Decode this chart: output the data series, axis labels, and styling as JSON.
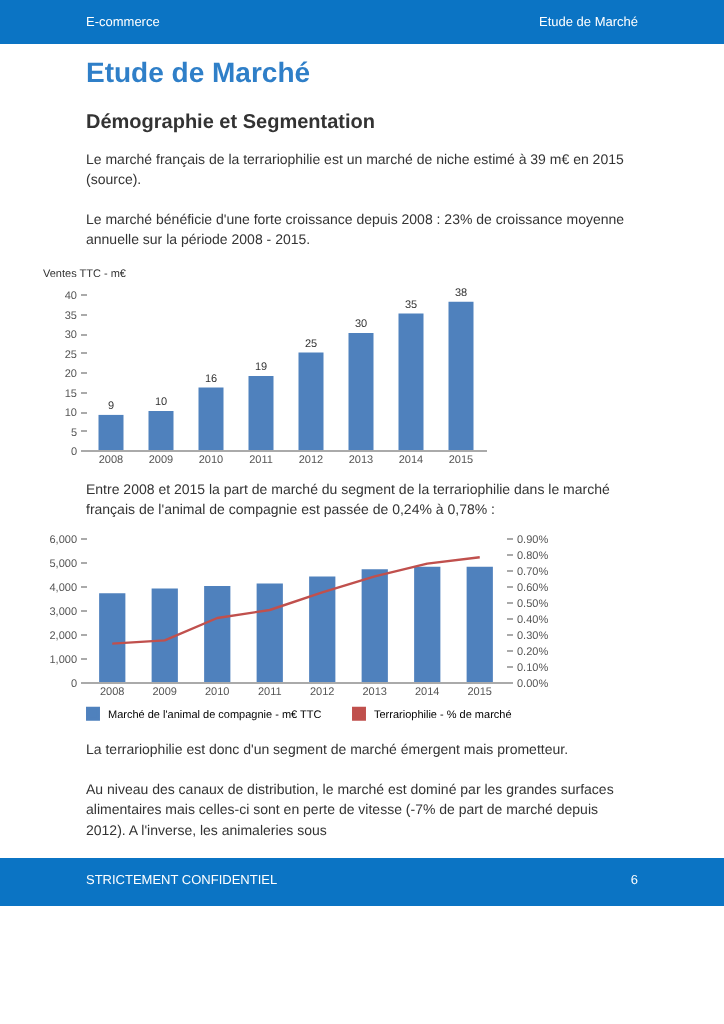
{
  "chart_data": [
    {
      "type": "bar",
      "title": "Etude de Marché",
      "subtitle": "Démographie et Segmentation",
      "annotations": [
        "E-commerce",
        "Etude de Marché",
        "Le marché français de la terrariophilie est un marché de niche estimé à 39 m€ en 2015 (source).",
        "Le marché bénéficie d'une forte croissance depuis 2008 : 23% de croissance moyenne annuelle sur la période 2008 - 2015."
      ],
      "ylabel": "Ventes TTC - m€",
      "categories": [
        "2008",
        "2009",
        "2010",
        "2011",
        "2012",
        "2013",
        "2014",
        "2015"
      ],
      "values": [
        9,
        10,
        16,
        19,
        25,
        30,
        35,
        38
      ],
      "color": "#4f81bd",
      "data_labels": true,
      "ylim": [
        0,
        40
      ],
      "yticks": [
        0,
        5,
        10,
        15,
        20,
        25,
        30,
        35,
        40
      ],
      "grid": false,
      "legend": false
    },
    {
      "type": "bar",
      "title": "Entre 2008 et 2015 la part de marché du segment de la terrariophilie dans le marché français de l'animal de compagnie est passée de 0,24% à 0,78% :",
      "annotations": [
        "La terrariophilie est donc d'un segment de marché émergent mais prometteur.",
        "Au niveau des canaux de distribution, le marché est dominé par les grandes surfaces alimentaires mais celles-ci sont en perte de vitesse (-7% de part de marché depuis 2012). A l'inverse, les animaleries sous",
        "STRICTEMENT CONFIDENTIEL",
        "6"
      ],
      "categories": [
        "2008",
        "2009",
        "2010",
        "2011",
        "2012",
        "2013",
        "2014",
        "2015"
      ],
      "series": [
        {
          "name": "Marché de l'animal de compagnie - m€ TTC",
          "type": "bar",
          "color": "#4f81bd",
          "values": [
            3700,
            3900,
            4000,
            4100,
            4400,
            4700,
            4800,
            4800
          ]
        },
        {
          "name": "Terrariophilie - % de marché",
          "type": "line",
          "axis": "y2",
          "color": "#c0504d",
          "values": [
            0.24,
            0.26,
            0.4,
            0.45,
            0.56,
            0.66,
            0.74,
            0.78
          ]
        }
      ],
      "ylim": [
        0,
        6000
      ],
      "yticks": [
        0,
        {
          "value": 1000,
          "label": "1,000"
        },
        {
          "value": 2000,
          "label": "2,000"
        },
        {
          "value": 3000,
          "label": "3,000"
        },
        {
          "value": 4000,
          "label": "4,000"
        },
        {
          "value": 5000,
          "label": "5,000"
        },
        {
          "value": 6000,
          "label": "6,000"
        }
      ],
      "y2lim": [
        0,
        0.9
      ],
      "y2ticks": [
        {
          "value": 0,
          "label": "0.00%"
        },
        {
          "value": 0.1,
          "label": "0.10%"
        },
        {
          "value": 0.2,
          "label": "0.20%"
        },
        {
          "value": 0.3,
          "label": "0.30%"
        },
        {
          "value": 0.4,
          "label": "0.40%"
        },
        {
          "value": 0.5,
          "label": "0.50%"
        },
        {
          "value": 0.6,
          "label": "0.60%"
        },
        {
          "value": 0.7,
          "label": "0.70%"
        },
        {
          "value": 0.8,
          "label": "0.80%"
        },
        {
          "value": 0.9,
          "label": "0.90%"
        }
      ],
      "grid": false,
      "legend": "bottom",
      "marker": "none",
      "line_style": "solid"
    }
  ]
}
